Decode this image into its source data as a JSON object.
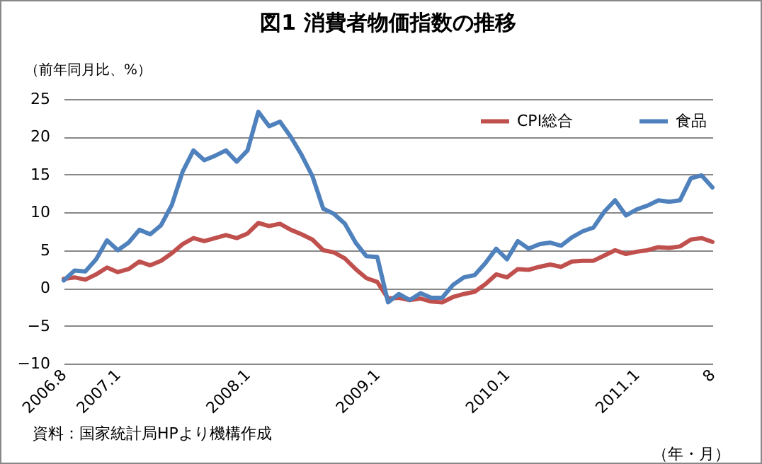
{
  "chart_data": {
    "type": "line",
    "title": "図1 消費者物価指数の推移",
    "ylabel": "（前年同月比、%）",
    "xlabel": "（年・月）",
    "annotations": [
      "資料：国家統計局HPより機構作成"
    ],
    "categories": [
      "2006.8",
      null,
      null,
      null,
      null,
      "2007.1",
      null,
      null,
      null,
      null,
      null,
      null,
      null,
      null,
      null,
      null,
      null,
      "2008.1",
      null,
      null,
      null,
      null,
      null,
      null,
      null,
      null,
      null,
      null,
      null,
      "2009.1",
      null,
      null,
      null,
      null,
      null,
      null,
      null,
      null,
      null,
      null,
      null,
      "2010.1",
      null,
      null,
      null,
      null,
      null,
      null,
      null,
      null,
      null,
      null,
      null,
      "2011.1",
      null,
      null,
      null,
      null,
      null,
      null,
      "8"
    ],
    "series": [
      {
        "name": "CPI総合",
        "color": "#c0504d",
        "values": [
          1.2,
          1.4,
          1.1,
          1.8,
          2.7,
          2.1,
          2.5,
          3.5,
          3.0,
          3.6,
          4.6,
          5.8,
          6.6,
          6.2,
          6.6,
          7.0,
          6.6,
          7.2,
          8.6,
          8.2,
          8.5,
          7.7,
          7.1,
          6.4,
          5.0,
          4.7,
          3.9,
          2.5,
          1.3,
          0.8,
          -1.4,
          -1.3,
          -1.6,
          -1.4,
          -1.8,
          -1.9,
          -1.2,
          -0.8,
          -0.5,
          0.5,
          1.8,
          1.4,
          2.5,
          2.4,
          2.8,
          3.1,
          2.8,
          3.5,
          3.6,
          3.6,
          4.3,
          5.0,
          4.5,
          4.8,
          5.0,
          5.4,
          5.3,
          5.5,
          6.4,
          6.6,
          6.1
        ]
      },
      {
        "name": "食品",
        "color": "#4f81bd",
        "values": [
          1.0,
          2.3,
          2.2,
          3.8,
          6.3,
          5.0,
          6.0,
          7.7,
          7.1,
          8.3,
          11.0,
          15.4,
          18.2,
          16.9,
          17.5,
          18.2,
          16.7,
          18.2,
          23.3,
          21.4,
          22.0,
          20.0,
          17.6,
          14.8,
          10.5,
          9.8,
          8.5,
          6.0,
          4.2,
          4.1,
          -1.9,
          -0.8,
          -1.6,
          -0.7,
          -1.3,
          -1.3,
          0.4,
          1.4,
          1.7,
          3.3,
          5.2,
          3.8,
          6.2,
          5.2,
          5.8,
          6.0,
          5.6,
          6.7,
          7.5,
          8.0,
          10.1,
          11.6,
          9.6,
          10.4,
          10.9,
          11.6,
          11.4,
          11.6,
          14.5,
          14.9,
          13.3
        ]
      }
    ],
    "ylim": [
      -10,
      25
    ],
    "yticks": [
      -10,
      -5,
      0,
      5,
      10,
      15,
      20,
      25
    ],
    "grid": "y",
    "legend": "top right",
    "marker": "none",
    "line_style": "solid"
  }
}
